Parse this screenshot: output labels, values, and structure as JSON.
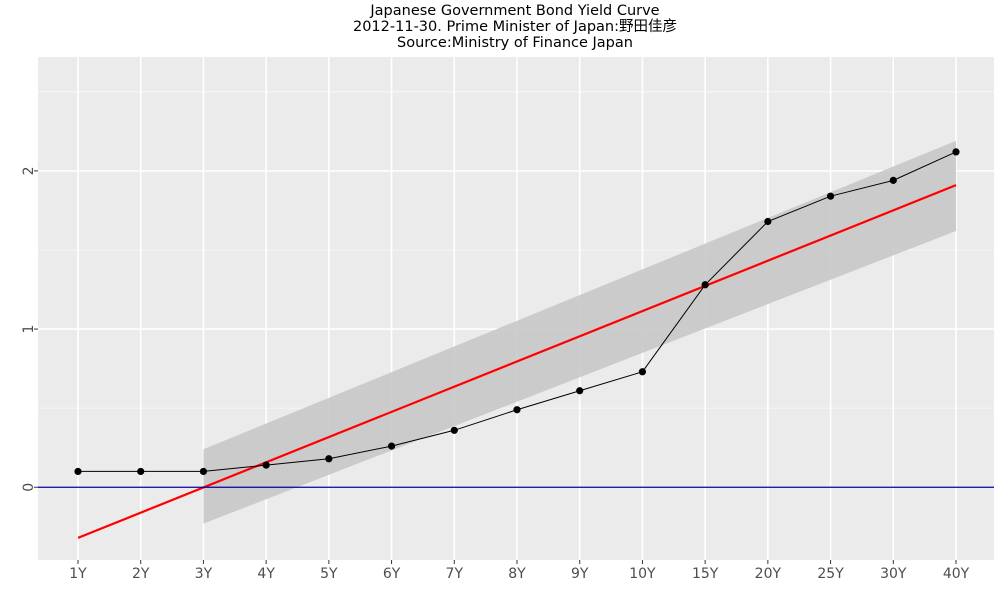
{
  "chart_data": {
    "type": "line",
    "title": "Japanese Government Bond Yield Curve",
    "subtitle": "2012-11-30. Prime Minister of Japan:野田佳彦",
    "source": "Source:Ministry of Finance Japan",
    "xlabel": "",
    "ylabel": "",
    "categories": [
      "1Y",
      "2Y",
      "3Y",
      "4Y",
      "5Y",
      "6Y",
      "7Y",
      "8Y",
      "9Y",
      "10Y",
      "15Y",
      "20Y",
      "25Y",
      "30Y",
      "40Y"
    ],
    "series": [
      {
        "values": [
          0.1,
          0.1,
          0.1,
          0.14,
          0.18,
          0.26,
          0.36,
          0.49,
          0.61,
          0.73,
          1.28,
          1.68,
          1.84,
          1.94,
          2.12
        ],
        "color": "#000000",
        "markers": true
      }
    ],
    "regression_line": {
      "start": -0.32,
      "end": 1.91,
      "color": "#ff0000"
    },
    "confidence_band": {
      "x_index": [
        2,
        14
      ],
      "lower": [
        -0.23,
        1.62
      ],
      "upper": [
        0.24,
        2.19
      ],
      "color": "#c8c8c8"
    },
    "reference_line": {
      "y": 0,
      "color": "#0000a0"
    },
    "yticks": [
      0,
      1,
      2
    ],
    "ylim": [
      -0.46,
      2.72
    ],
    "grid": true,
    "background": "#ebebeb",
    "gridline_color": "#ffffff"
  }
}
